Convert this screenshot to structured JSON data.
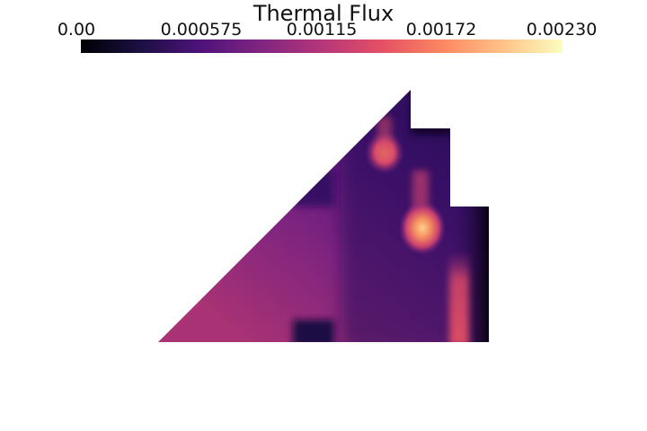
{
  "title": "Thermal Flux",
  "colorbar": {
    "min": 0.0,
    "max": 0.0023,
    "colormap": "magma",
    "stops": [
      "#000004",
      "#1c1044",
      "#4f127b",
      "#812581",
      "#b5367a",
      "#e55064",
      "#fb8761",
      "#fec287",
      "#fcfdbf"
    ],
    "ticks": [
      "0.00",
      "0.000575",
      "0.00115",
      "0.00172",
      "0.00230"
    ]
  }
}
